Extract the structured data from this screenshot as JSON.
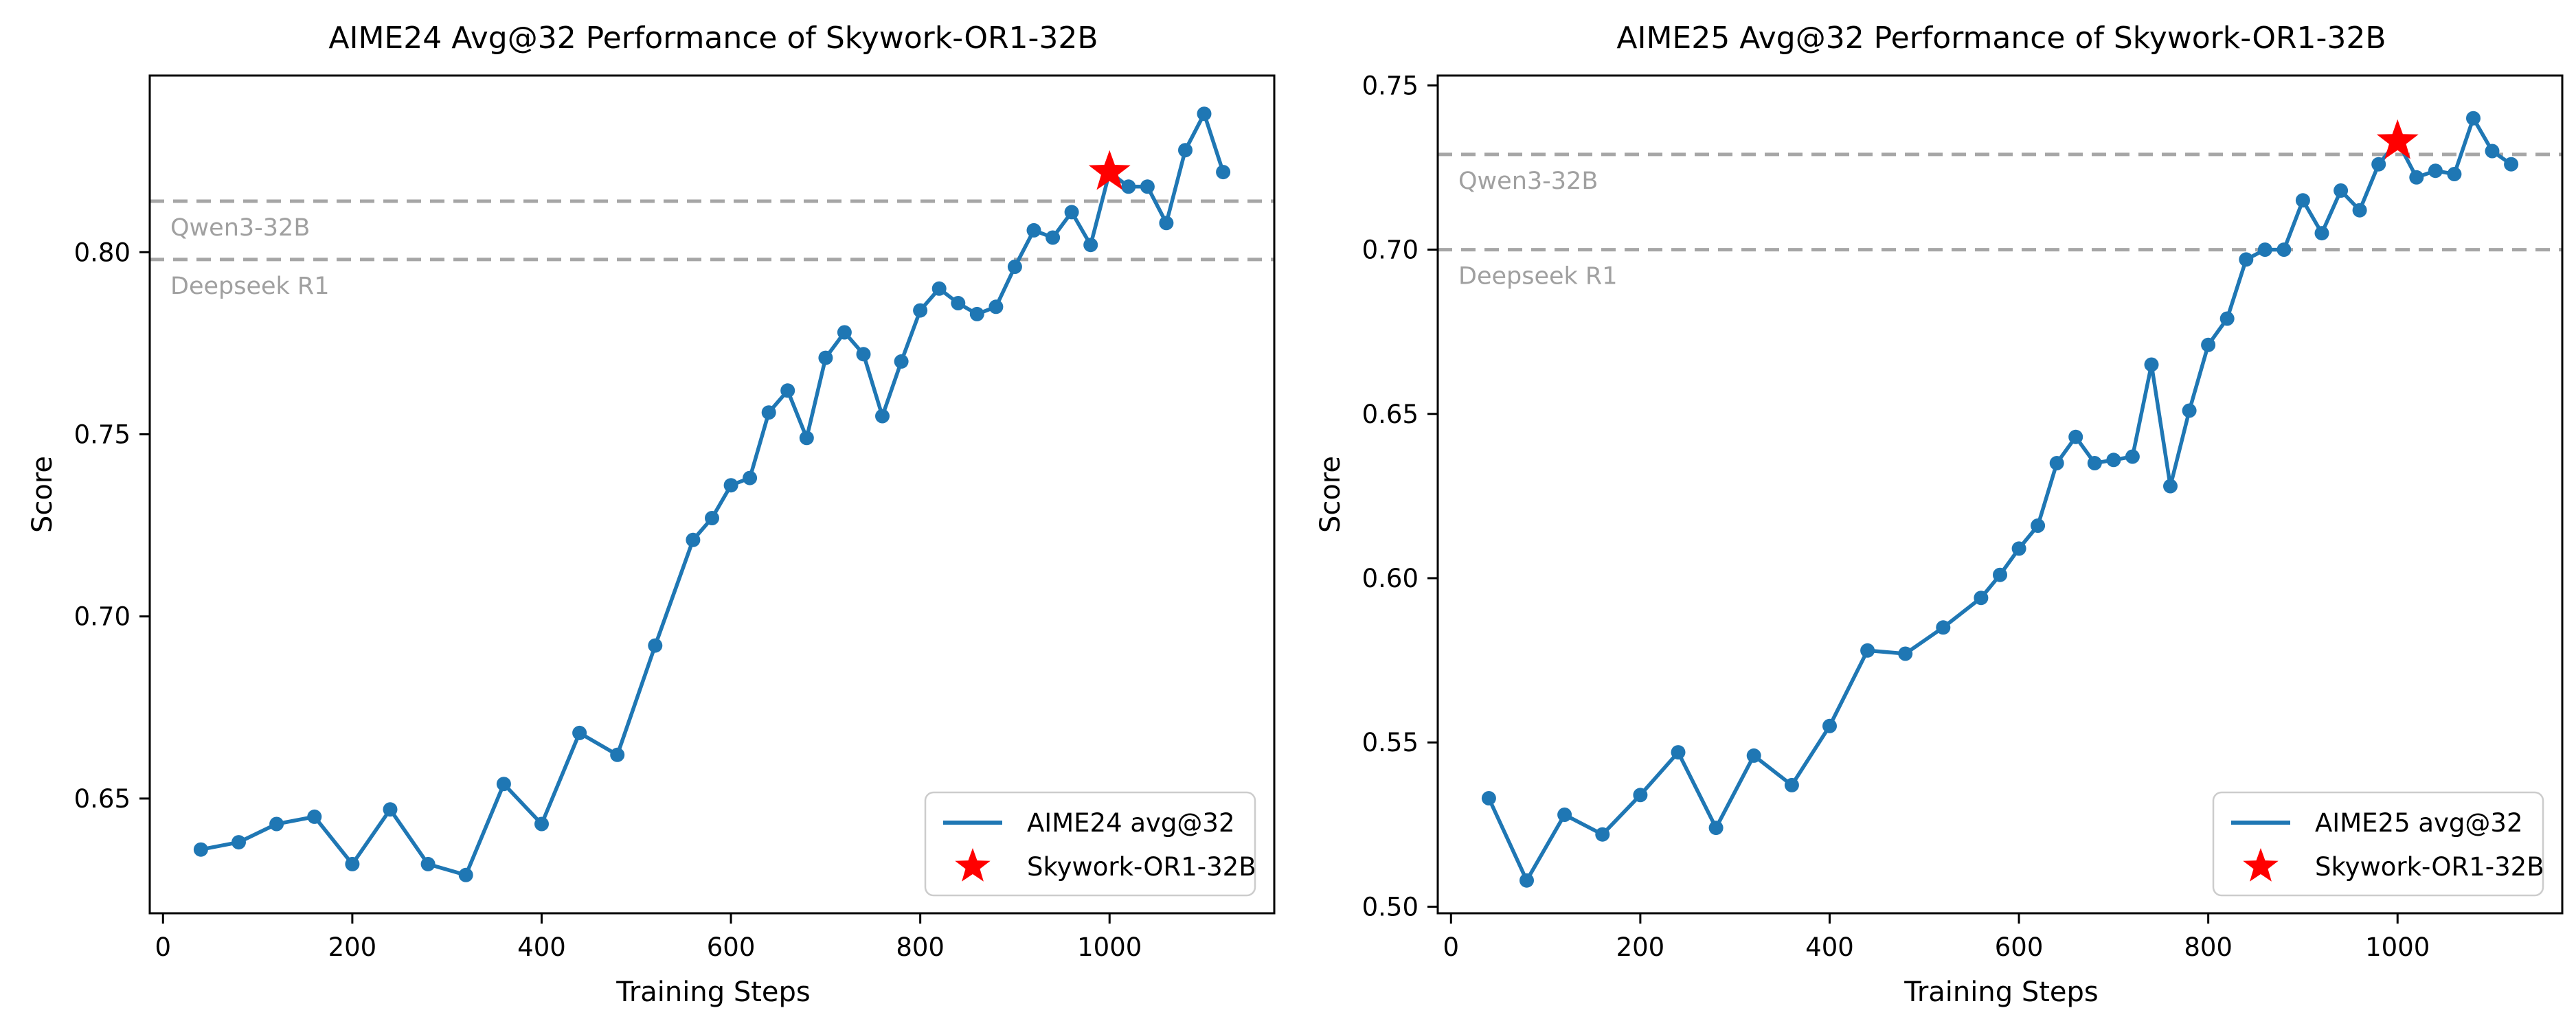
{
  "figure": {
    "background": "#ffffff"
  },
  "chart_data": [
    {
      "type": "line",
      "title": "AIME24 Avg@32 Performance of Skywork-OR1-32B",
      "xlabel": "Training Steps",
      "ylabel": "Score",
      "x": [
        40,
        80,
        120,
        160,
        200,
        240,
        280,
        320,
        360,
        400,
        440,
        480,
        520,
        560,
        580,
        600,
        620,
        640,
        660,
        680,
        700,
        720,
        740,
        760,
        780,
        800,
        820,
        840,
        860,
        880,
        900,
        920,
        940,
        960,
        980,
        1000,
        1020,
        1040,
        1060,
        1080,
        1100,
        1120
      ],
      "series": [
        {
          "name": "AIME24 avg@32",
          "color": "#1f77b4",
          "values": [
            0.636,
            0.638,
            0.643,
            0.645,
            0.632,
            0.647,
            0.632,
            0.629,
            0.654,
            0.643,
            0.668,
            0.662,
            0.692,
            0.721,
            0.727,
            0.736,
            0.738,
            0.756,
            0.762,
            0.749,
            0.771,
            0.778,
            0.772,
            0.755,
            0.77,
            0.784,
            0.79,
            0.786,
            0.783,
            0.785,
            0.796,
            0.806,
            0.804,
            0.811,
            0.802,
            0.822,
            0.818,
            0.818,
            0.808,
            0.828,
            0.838,
            0.822
          ]
        }
      ],
      "star": {
        "name": "Skywork-OR1-32B",
        "color": "#ff0000",
        "x": 1000,
        "y": 0.822
      },
      "baselines": [
        {
          "label": "Qwen3-32B",
          "y": 0.814
        },
        {
          "label": "Deepseek R1",
          "y": 0.798
        }
      ],
      "baseline_color": "#a6a6a6",
      "baseline_label_color": "#a0a0a0",
      "xticks": [
        0,
        200,
        400,
        600,
        800,
        1000
      ],
      "yticks": [
        0.65,
        0.7,
        0.75,
        0.8
      ],
      "xlim": [
        -14,
        1174
      ],
      "ylim": [
        0.6185,
        0.8485
      ],
      "grid": false,
      "legend": {
        "position": "lower right",
        "line_label": "AIME24 avg@32",
        "star_label": "Skywork-OR1-32B"
      }
    },
    {
      "type": "line",
      "title": "AIME25 Avg@32 Performance of Skywork-OR1-32B",
      "xlabel": "Training Steps",
      "ylabel": "Score",
      "x": [
        40,
        80,
        120,
        160,
        200,
        240,
        280,
        320,
        360,
        400,
        440,
        480,
        520,
        560,
        580,
        600,
        620,
        640,
        660,
        680,
        700,
        720,
        740,
        760,
        780,
        800,
        820,
        840,
        860,
        880,
        900,
        920,
        940,
        960,
        980,
        1000,
        1020,
        1040,
        1060,
        1080,
        1100,
        1120
      ],
      "series": [
        {
          "name": "AIME25 avg@32",
          "color": "#1f77b4",
          "values": [
            0.533,
            0.508,
            0.528,
            0.522,
            0.534,
            0.547,
            0.524,
            0.546,
            0.537,
            0.555,
            0.578,
            0.577,
            0.585,
            0.594,
            0.601,
            0.609,
            0.616,
            0.635,
            0.643,
            0.635,
            0.636,
            0.637,
            0.665,
            0.628,
            0.651,
            0.671,
            0.679,
            0.697,
            0.7,
            0.7,
            0.715,
            0.705,
            0.718,
            0.712,
            0.726,
            0.733,
            0.722,
            0.724,
            0.723,
            0.74,
            0.73,
            0.726
          ]
        }
      ],
      "star": {
        "name": "Skywork-OR1-32B",
        "color": "#ff0000",
        "x": 1000,
        "y": 0.733
      },
      "baselines": [
        {
          "label": "Qwen3-32B",
          "y": 0.729
        },
        {
          "label": "Deepseek R1",
          "y": 0.7
        }
      ],
      "baseline_color": "#a6a6a6",
      "baseline_label_color": "#a0a0a0",
      "xticks": [
        0,
        200,
        400,
        600,
        800,
        1000
      ],
      "yticks": [
        0.5,
        0.55,
        0.6,
        0.65,
        0.7,
        0.75
      ],
      "xlim": [
        -14,
        1174
      ],
      "ylim": [
        0.498,
        0.753
      ],
      "grid": false,
      "legend": {
        "position": "lower right",
        "line_label": "AIME25 avg@32",
        "star_label": "Skywork-OR1-32B"
      }
    }
  ]
}
